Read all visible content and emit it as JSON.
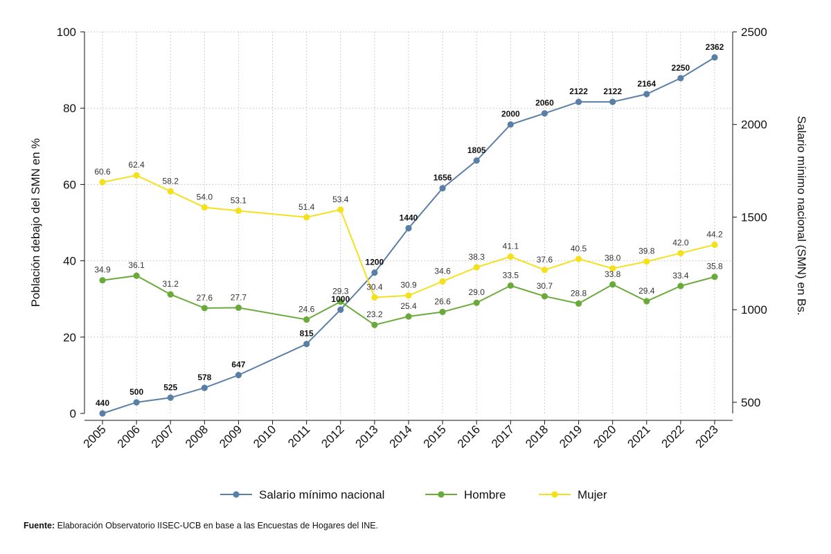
{
  "chart_data": {
    "type": "line",
    "x": [
      2005,
      2006,
      2007,
      2008,
      2009,
      2010,
      2011,
      2012,
      2013,
      2014,
      2015,
      2016,
      2017,
      2018,
      2019,
      2020,
      2021,
      2022,
      2023
    ],
    "x_tick_labels": [
      "2005",
      "2006",
      "2007",
      "2008",
      "2009",
      "2010",
      "2011",
      "2012",
      "2013",
      "2014",
      "2015",
      "2016",
      "2017",
      "2018",
      "2019",
      "2020",
      "2021",
      "2022",
      "2023"
    ],
    "ylabel_left": "Población debajo del SMN en %",
    "ylabel_right": "Salario mínimo nacional (SMN) en Bs.",
    "ylim_left": [
      0,
      100
    ],
    "yticks_left": [
      0,
      20,
      40,
      60,
      80,
      100
    ],
    "ylim_right": [
      440,
      2500
    ],
    "yticks_right": [
      500,
      1000,
      1500,
      2000,
      2500
    ],
    "grid": true,
    "legend_position": "bottom",
    "series": [
      {
        "name": "Salario mínimo nacional",
        "axis": "right",
        "color": "#5a7fa6",
        "label_color": "#111111",
        "label_bold": true,
        "x": [
          2005,
          2006,
          2007,
          2008,
          2009,
          2011,
          2012,
          2013,
          2014,
          2015,
          2016,
          2017,
          2018,
          2019,
          2020,
          2021,
          2022,
          2023
        ],
        "values": [
          440,
          500,
          525,
          578,
          647,
          815,
          1000,
          1200,
          1440,
          1656,
          1805,
          2000,
          2060,
          2122,
          2122,
          2164,
          2250,
          2362
        ],
        "labels": [
          "440",
          "500",
          "525",
          "578",
          "647",
          "815",
          "1000",
          "1200",
          "1440",
          "1656",
          "1805",
          "2000",
          "2060",
          "2122",
          "2122",
          "2164",
          "2250",
          "2362"
        ]
      },
      {
        "name": "Hombre",
        "axis": "left",
        "color": "#6aaa3a",
        "label_color": "#333333",
        "label_bold": false,
        "x": [
          2005,
          2006,
          2007,
          2008,
          2009,
          2011,
          2012,
          2013,
          2014,
          2015,
          2016,
          2017,
          2018,
          2019,
          2020,
          2021,
          2022,
          2023
        ],
        "values": [
          34.9,
          36.1,
          31.2,
          27.6,
          27.7,
          24.6,
          29.3,
          23.2,
          25.4,
          26.6,
          29.0,
          33.5,
          30.7,
          28.8,
          33.8,
          29.4,
          33.4,
          35.8
        ],
        "labels": [
          "34.9",
          "36.1",
          "31.2",
          "27.6",
          "27.7",
          "24.6",
          "29.3",
          "23.2",
          "25.4",
          "26.6",
          "29.0",
          "33.5",
          "30.7",
          "28.8",
          "33.8",
          "29.4",
          "33.4",
          "35.8"
        ]
      },
      {
        "name": "Mujer",
        "axis": "left",
        "color": "#f5e01e",
        "label_color": "#333333",
        "label_bold": false,
        "x": [
          2005,
          2006,
          2007,
          2008,
          2009,
          2011,
          2012,
          2013,
          2014,
          2015,
          2016,
          2017,
          2018,
          2019,
          2020,
          2021,
          2022,
          2023
        ],
        "values": [
          60.6,
          62.4,
          58.2,
          54.0,
          53.1,
          51.4,
          53.4,
          30.4,
          30.9,
          34.6,
          38.3,
          41.1,
          37.6,
          40.5,
          38.0,
          39.8,
          42.0,
          44.2
        ],
        "labels": [
          "60.6",
          "62.4",
          "58.2",
          "54.0",
          "53.1",
          "51.4",
          "53.4",
          "30.4",
          "30.9",
          "34.6",
          "38.3",
          "41.1",
          "37.6",
          "40.5",
          "38.0",
          "39.8",
          "42.0",
          "44.2"
        ]
      }
    ]
  },
  "source": {
    "label": "Fuente:",
    "text": " Elaboración Observatorio IISEC-UCB en base a las Encuestas de Hogares del INE."
  }
}
